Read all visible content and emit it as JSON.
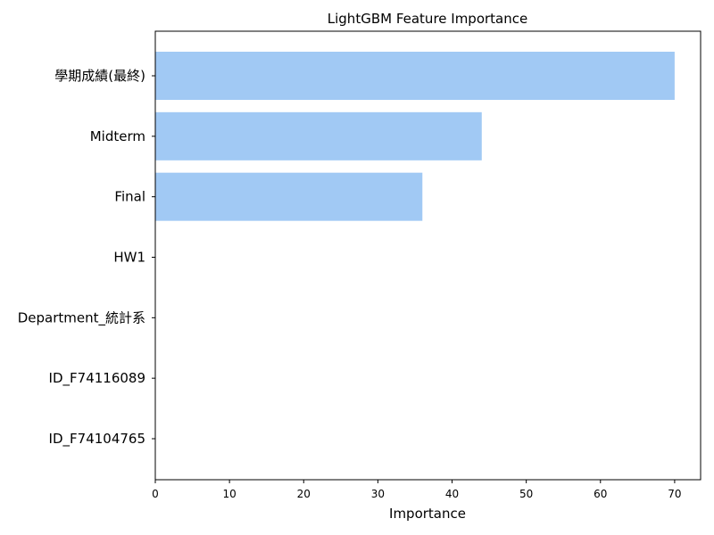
{
  "chart_data": {
    "type": "bar",
    "orientation": "horizontal",
    "title": "LightGBM Feature Importance",
    "xlabel": "Importance",
    "ylabel": "",
    "categories": [
      "學期成績(最終)",
      "Midterm",
      "Final",
      "HW1",
      "Department_統計系",
      "ID_F74116089",
      "ID_F74104765"
    ],
    "values": [
      70,
      44,
      36,
      0,
      0,
      0,
      0
    ],
    "xlim": [
      0,
      73.5
    ],
    "xticks": [
      0,
      10,
      20,
      30,
      40,
      50,
      60,
      70
    ],
    "grid": false,
    "legend": "none",
    "bar_color": "#a1c9f4"
  }
}
